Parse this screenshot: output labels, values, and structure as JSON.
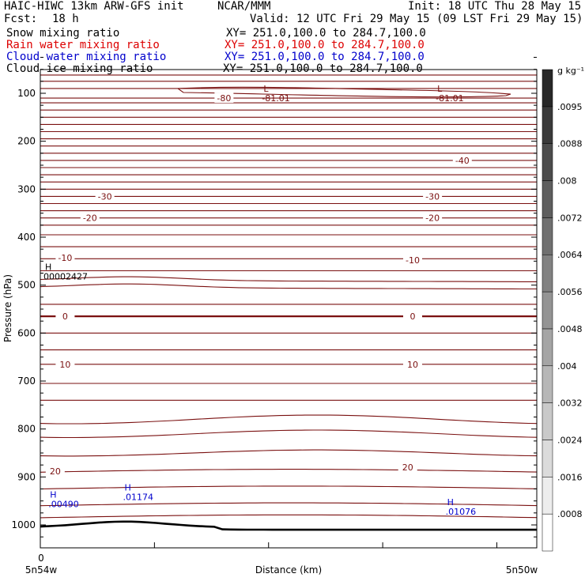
{
  "header": {
    "title": "HAIC-HIWC 13km ARW-GFS init",
    "org": "NCAR/MMM",
    "init": "Init: 18 UTC Thu 28 May 15",
    "fcst_label": "Fcst:",
    "fcst_value": "18 h",
    "valid": "Valid: 12 UTC Fri 29 May 15 (09 LST Fri 29 May 15)",
    "fields": [
      {
        "name": "Snow mixing ratio",
        "xy": "XY= 251.0,100.0 to 284.7,100.0",
        "color": "#000000"
      },
      {
        "name": "Rain water mixing ratio",
        "xy": "XY= 251.0,100.0 to 284.7,100.0",
        "color": "#dd0000"
      },
      {
        "name": "Cloud water mixing ratio",
        "xy": "XY= 251.0,100.0 to 284.7,100.0",
        "color": "#0000cc"
      },
      {
        "name": "Cloud ice mixing ratio",
        "xy": "XY= 251.0,100.0 to 284.7,100.0",
        "color": "#000000"
      }
    ]
  },
  "chart_data": {
    "type": "cross-section",
    "xlabel": "Distance (km)",
    "ylabel": "Pressure (hPa)",
    "x_left_label": "5n54w",
    "x_right_label": "5n50w",
    "x_zero_label": "0",
    "y_ticks": [
      "100",
      "200",
      "300",
      "400",
      "500",
      "600",
      "700",
      "800",
      "900",
      "1000"
    ],
    "y_range": [
      1045,
      60
    ],
    "colorbar": {
      "units": "g kg⁻¹",
      "ticks": [
        ".0008",
        ".0016",
        ".0024",
        ".0032",
        ".004",
        ".0048",
        ".0056",
        ".0064",
        ".0072",
        ".008",
        ".0088",
        ".0095"
      ]
    },
    "isotherm_labels": [
      {
        "text": "-80",
        "p": 110,
        "x": 0.37
      },
      {
        "text": "-40",
        "p": 240,
        "x": 0.85
      },
      {
        "text": "-30",
        "p": 315,
        "x": 0.13
      },
      {
        "text": "-30",
        "p": 315,
        "x": 0.79
      },
      {
        "text": "-20",
        "p": 360,
        "x": 0.1
      },
      {
        "text": "-20",
        "p": 360,
        "x": 0.79
      },
      {
        "text": "-10",
        "p": 443,
        "x": 0.05
      },
      {
        "text": "-10",
        "p": 448,
        "x": 0.75
      },
      {
        "text": "0",
        "p": 565,
        "x": 0.05
      },
      {
        "text": "0",
        "p": 565,
        "x": 0.75
      },
      {
        "text": "10",
        "p": 665,
        "x": 0.05
      },
      {
        "text": "10",
        "p": 665,
        "x": 0.75
      },
      {
        "text": "20",
        "p": 888,
        "x": 0.03
      },
      {
        "text": "20",
        "p": 880,
        "x": 0.74
      }
    ],
    "extrema": [
      {
        "type": "L",
        "value": "-81.01",
        "p": 113,
        "x": 0.44,
        "color": "#7a1010"
      },
      {
        "type": "L",
        "value": "-81.01",
        "p": 113,
        "x": 0.79,
        "color": "#7a1010"
      },
      {
        "type": "H",
        "value": "00002427",
        "p": 485,
        "x": 0.0,
        "color": "#000000"
      },
      {
        "type": "H",
        "value": ".00490",
        "p": 960,
        "x": 0.01,
        "color": "#0000cc"
      },
      {
        "type": "H",
        "value": ".01174",
        "p": 945,
        "x": 0.16,
        "color": "#0000cc"
      },
      {
        "type": "H",
        "value": ".01076",
        "p": 975,
        "x": 0.81,
        "color": "#0000cc"
      }
    ]
  }
}
